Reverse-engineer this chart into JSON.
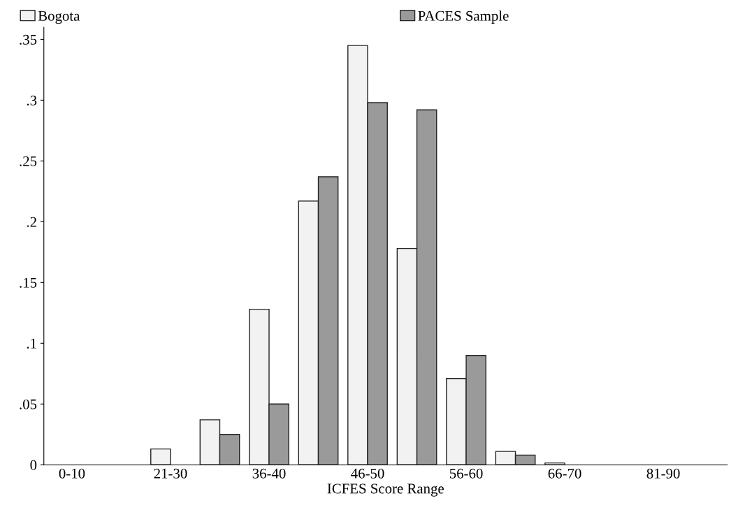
{
  "chart_data": {
    "type": "bar",
    "xlabel": "ICFES Score Range",
    "categories": [
      "0-10",
      null,
      "21-30",
      null,
      "36-40",
      null,
      "46-50",
      null,
      "56-60",
      null,
      "66-70",
      null,
      "81-90"
    ],
    "series": [
      {
        "name": "Bogota",
        "color": "#f2f2f2",
        "values": [
          0,
          0,
          0.013,
          0.037,
          0.128,
          0.217,
          0.345,
          0.178,
          0.071,
          0.011,
          0.0015,
          0,
          0
        ]
      },
      {
        "name": "PACES Sample",
        "color": "#9a9a9a",
        "values": [
          0,
          0,
          0,
          0.025,
          0.05,
          0.237,
          0.298,
          0.292,
          0.09,
          0.008,
          0,
          0,
          0
        ]
      }
    ],
    "ylim": [
      0,
      0.36
    ],
    "yticks": [
      0,
      {
        "value": 0.05,
        "label": ".05"
      },
      {
        "value": 0.1,
        "label": ".1"
      },
      {
        "value": 0.15,
        "label": ".15"
      },
      {
        "value": 0.2,
        "label": ".2"
      },
      {
        "value": 0.25,
        "label": ".25"
      },
      {
        "value": 0.3,
        "label": ".3"
      },
      {
        "value": 0.35,
        "label": ".35"
      }
    ],
    "grid": false,
    "legend": "top"
  }
}
